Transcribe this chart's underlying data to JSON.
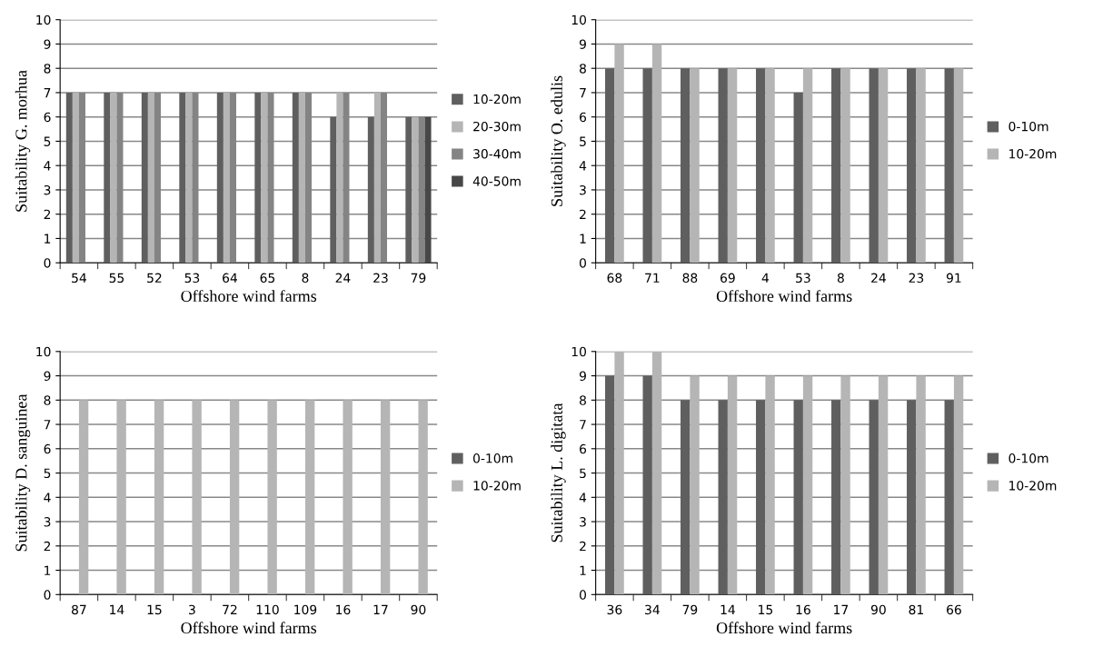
{
  "chart_data": [
    {
      "type": "bar",
      "xlabel": "Offshore wind farms",
      "ylabel": "Suitability G. morhua",
      "categories": [
        "54",
        "55",
        "52",
        "53",
        "64",
        "65",
        "8",
        "24",
        "23",
        "79"
      ],
      "series": [
        {
          "name": "10-20m",
          "color": "#5f5f5f",
          "values": [
            7,
            7,
            7,
            7,
            7,
            7,
            7,
            6,
            6,
            6
          ]
        },
        {
          "name": "20-30m",
          "color": "#b5b5b5",
          "values": [
            7,
            7,
            7,
            7,
            7,
            7,
            7,
            7,
            7,
            6
          ]
        },
        {
          "name": "30-40m",
          "color": "#848484",
          "values": [
            7,
            7,
            7,
            7,
            7,
            7,
            7,
            7,
            7,
            6
          ]
        },
        {
          "name": "40-50m",
          "color": "#474747",
          "values": [
            null,
            null,
            null,
            null,
            null,
            null,
            null,
            null,
            null,
            6
          ]
        }
      ],
      "ylim": [
        0,
        10
      ],
      "yticks": [
        0,
        1,
        2,
        3,
        4,
        5,
        6,
        7,
        8,
        9,
        10
      ],
      "grid": "y",
      "legend": "right"
    },
    {
      "type": "bar",
      "xlabel": "Offshore wind farms",
      "ylabel": "Suitability O. edulis",
      "categories": [
        "68",
        "71",
        "88",
        "69",
        "4",
        "53",
        "8",
        "24",
        "23",
        "91"
      ],
      "series": [
        {
          "name": "0-10m",
          "color": "#5f5f5f",
          "values": [
            8,
            8,
            8,
            8,
            8,
            7,
            8,
            8,
            8,
            8
          ]
        },
        {
          "name": "10-20m",
          "color": "#b5b5b5",
          "values": [
            9,
            9,
            8,
            8,
            8,
            8,
            8,
            8,
            8,
            8
          ]
        }
      ],
      "ylim": [
        0,
        10
      ],
      "yticks": [
        0,
        1,
        2,
        3,
        4,
        5,
        6,
        7,
        8,
        9,
        10
      ],
      "grid": "y",
      "legend": "right"
    },
    {
      "type": "bar",
      "xlabel": "Offshore wind farms",
      "ylabel": "Suitability D. sanguinea",
      "categories": [
        "87",
        "14",
        "15",
        "3",
        "72",
        "110",
        "109",
        "16",
        "17",
        "90"
      ],
      "series": [
        {
          "name": "0-10m",
          "color": "#5f5f5f",
          "values": [
            null,
            null,
            null,
            null,
            null,
            null,
            null,
            null,
            null,
            null
          ]
        },
        {
          "name": "10-20m",
          "color": "#b5b5b5",
          "values": [
            8,
            8,
            8,
            8,
            8,
            8,
            8,
            8,
            8,
            8
          ]
        }
      ],
      "ylim": [
        0,
        10
      ],
      "yticks": [
        0,
        1,
        2,
        3,
        4,
        5,
        6,
        7,
        8,
        9,
        10
      ],
      "grid": "y",
      "legend": "right"
    },
    {
      "type": "bar",
      "xlabel": "Offshore wind farms",
      "ylabel": "Suitability L. digitata",
      "categories": [
        "36",
        "34",
        "79",
        "14",
        "15",
        "16",
        "17",
        "90",
        "81",
        "66"
      ],
      "series": [
        {
          "name": "0-10m",
          "color": "#5f5f5f",
          "values": [
            9,
            9,
            8,
            8,
            8,
            8,
            8,
            8,
            8,
            8
          ]
        },
        {
          "name": "10-20m",
          "color": "#b5b5b5",
          "values": [
            10,
            10,
            9,
            9,
            9,
            9,
            9,
            9,
            9,
            9
          ]
        }
      ],
      "ylim": [
        0,
        10
      ],
      "yticks": [
        0,
        1,
        2,
        3,
        4,
        5,
        6,
        7,
        8,
        9,
        10
      ],
      "grid": "y",
      "legend": "right"
    }
  ]
}
